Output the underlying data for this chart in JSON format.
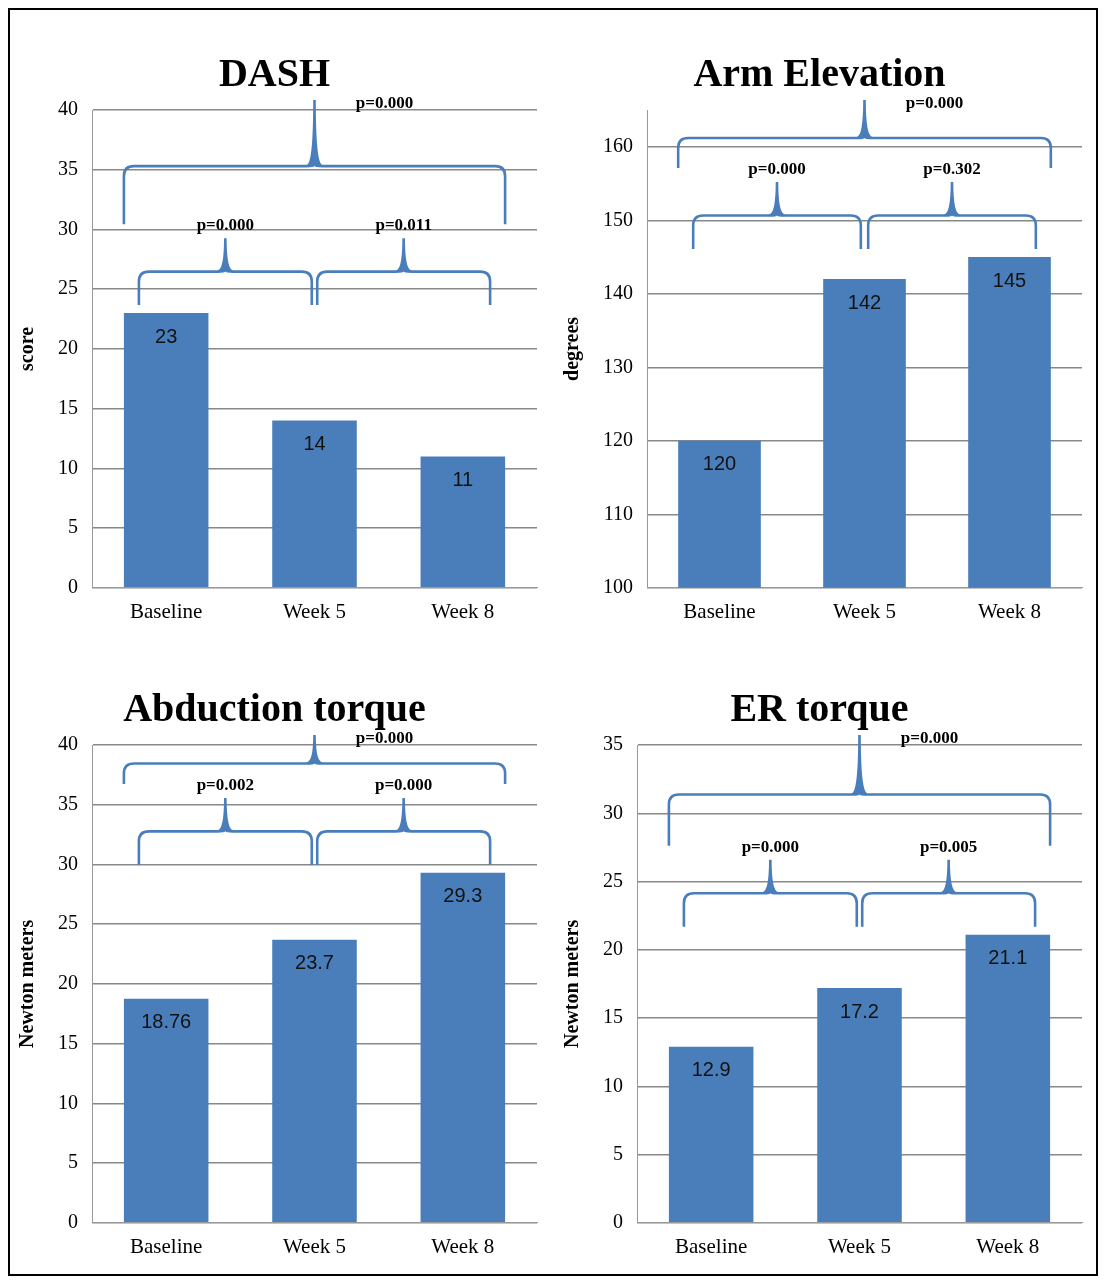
{
  "chart_data": [
    {
      "type": "bar",
      "title": "DASH",
      "ylabel": "score",
      "categories": [
        "Baseline",
        "Week 5",
        "Week 8"
      ],
      "values": [
        23,
        14,
        11
      ],
      "color": "#4a7ebb",
      "ylim": [
        0,
        40
      ],
      "yticks": [
        0,
        5,
        10,
        15,
        20,
        25,
        30,
        35,
        40
      ],
      "grid": "y",
      "data_labels": true,
      "annotations": [
        "p=0.000",
        "p=0.000",
        "p=0.011"
      ]
    },
    {
      "type": "bar",
      "title": "Arm Elevation",
      "ylabel": "degrees",
      "categories": [
        "Baseline",
        "Week 5",
        "Week 8"
      ],
      "values": [
        120,
        142,
        145
      ],
      "color": "#4a7ebb",
      "ylim": [
        100,
        165
      ],
      "yticks": [
        100,
        110,
        120,
        130,
        140,
        150,
        160
      ],
      "grid": "y",
      "data_labels": true,
      "annotations": [
        "p=0.000",
        "p=0.000",
        "p=0.302"
      ]
    },
    {
      "type": "bar",
      "title": "Abduction torque",
      "ylabel": "Newton meters",
      "categories": [
        "Baseline",
        "Week 5",
        "Week 8"
      ],
      "values": [
        18.76,
        23.7,
        29.3
      ],
      "color": "#4a7ebb",
      "ylim": [
        0,
        40
      ],
      "yticks": [
        0,
        5,
        10,
        15,
        20,
        25,
        30,
        35,
        40
      ],
      "grid": "y",
      "data_labels": true,
      "annotations": [
        "p=0.000",
        "p=0.002",
        "p=0.000"
      ]
    },
    {
      "type": "bar",
      "title": "ER torque",
      "ylabel": "Newton meters",
      "categories": [
        "Baseline",
        "Week 5",
        "Week 8"
      ],
      "values": [
        12.9,
        17.2,
        21.1
      ],
      "color": "#4a7ebb",
      "ylim": [
        0,
        35
      ],
      "yticks": [
        0,
        5,
        10,
        15,
        20,
        25,
        30,
        35
      ],
      "grid": "y",
      "data_labels": true,
      "annotations": [
        "p=0.000",
        "p=0.000",
        "p=0.005"
      ]
    }
  ]
}
